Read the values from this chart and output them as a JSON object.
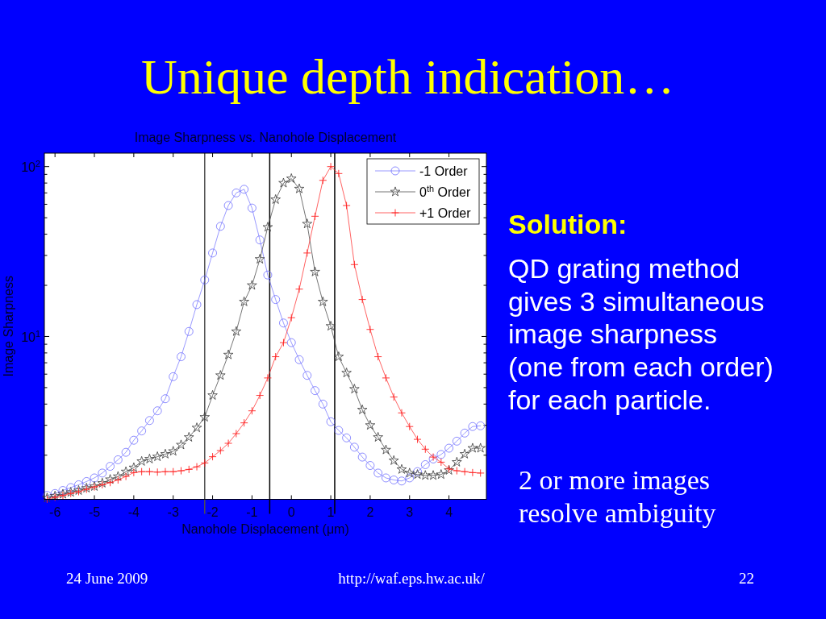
{
  "chart_data": {
    "type": "line",
    "title": "Unique depth indication…",
    "subtitle": "Image Sharpness vs. Nanohole Displacement",
    "xlabel": "Nanohole Displacement (μm)",
    "ylabel": "Image Sharpness",
    "x": [
      -6.2,
      -6,
      -5.8,
      -5.6,
      -5.4,
      -5.2,
      -5,
      -4.8,
      -4.6,
      -4.4,
      -4.2,
      -4,
      -3.8,
      -3.6,
      -3.4,
      -3.2,
      -3,
      -2.8,
      -2.6,
      -2.4,
      -2.2,
      -2,
      -1.8,
      -1.6,
      -1.4,
      -1.2,
      -1,
      -0.8,
      -0.6,
      -0.4,
      -0.2,
      0,
      0.2,
      0.4,
      0.6,
      0.8,
      1,
      1.2,
      1.4,
      1.6,
      1.8,
      2,
      2.2,
      2.4,
      2.6,
      2.8,
      3,
      3.2,
      3.4,
      3.6,
      3.8,
      4,
      4.2,
      4.4,
      4.6,
      4.8
    ],
    "series": [
      {
        "name": "-1 Order",
        "color": "#6f6fff",
        "marker": "circle",
        "values": [
          1.16,
          1.19,
          1.24,
          1.29,
          1.34,
          1.4,
          1.47,
          1.57,
          1.72,
          1.88,
          2.08,
          2.45,
          2.78,
          3.2,
          3.65,
          4.3,
          5.8,
          7.6,
          10.7,
          15.4,
          21.5,
          31,
          44.5,
          59,
          70,
          73.5,
          57,
          37,
          23,
          16.5,
          12,
          9.2,
          7.3,
          5.9,
          4.8,
          4,
          3.15,
          2.8,
          2.53,
          2.23,
          1.95,
          1.74,
          1.57,
          1.47,
          1.43,
          1.41,
          1.47,
          1.6,
          1.76,
          1.9,
          2.02,
          2.2,
          2.42,
          2.7,
          2.95,
          2.98
        ]
      },
      {
        "name": "0$^{th}$ Order",
        "color": "#3a3a3a",
        "marker": "star",
        "values": [
          1.12,
          1.15,
          1.18,
          1.21,
          1.24,
          1.28,
          1.31,
          1.37,
          1.44,
          1.5,
          1.6,
          1.69,
          1.84,
          1.9,
          1.96,
          2.03,
          2.11,
          2.3,
          2.55,
          2.9,
          3.35,
          4.5,
          5.9,
          7.8,
          10.7,
          16,
          20,
          28.5,
          44,
          64,
          80,
          85,
          74,
          46,
          24,
          16,
          11.5,
          7.6,
          6.1,
          4.9,
          3.7,
          3,
          2.55,
          2.15,
          1.86,
          1.65,
          1.57,
          1.54,
          1.52,
          1.52,
          1.54,
          1.63,
          1.82,
          2.03,
          2.2,
          2.2
        ]
      },
      {
        "name": "+1 Order",
        "color": "#ff2020",
        "marker": "cross",
        "values": [
          1.1,
          1.13,
          1.16,
          1.19,
          1.22,
          1.26,
          1.3,
          1.34,
          1.38,
          1.43,
          1.5,
          1.58,
          1.6,
          1.6,
          1.59,
          1.6,
          1.6,
          1.62,
          1.65,
          1.71,
          1.8,
          1.96,
          2.13,
          2.35,
          2.68,
          3.1,
          3.65,
          4.5,
          5.7,
          7.6,
          9.2,
          12.9,
          19,
          31,
          51,
          83,
          100,
          91,
          59,
          26.5,
          16.5,
          11,
          7.6,
          5.7,
          4.4,
          3.55,
          2.95,
          2.48,
          2.17,
          1.95,
          1.82,
          1.66,
          1.62,
          1.6,
          1.58,
          1.57
        ]
      }
    ],
    "xlim": [
      -6.27,
      4.95
    ],
    "xticks": [
      -6,
      -5,
      -4,
      -3,
      -2,
      -1,
      0,
      1,
      2,
      3,
      4
    ],
    "ylim": [
      1.1,
      120
    ],
    "yticks": [
      {
        "value": 2,
        "label": null
      },
      {
        "value": 3,
        "label": null
      },
      {
        "value": 4,
        "label": null
      },
      {
        "value": 5,
        "label": null
      },
      {
        "value": 6,
        "label": null
      },
      {
        "value": 7,
        "label": null
      },
      {
        "value": 8,
        "label": null
      },
      {
        "value": 9,
        "label": null
      },
      {
        "value": 10,
        "label": "10$^{1}$"
      },
      {
        "value": 20,
        "label": null
      },
      {
        "value": 30,
        "label": null
      },
      {
        "value": 40,
        "label": null
      },
      {
        "value": 50,
        "label": null
      },
      {
        "value": 60,
        "label": null
      },
      {
        "value": 70,
        "label": null
      },
      {
        "value": 80,
        "label": null
      },
      {
        "value": 90,
        "label": null
      },
      {
        "value": 100,
        "label": "10$^{2}$"
      }
    ],
    "log": true,
    "legend": "top right",
    "ref_lines": [
      {
        "axis": "x",
        "value": -2.2,
        "color": "#505050"
      },
      {
        "axis": "x",
        "value": -0.55,
        "color": "#000000"
      },
      {
        "axis": "x",
        "value": 1.1,
        "color": "#000000"
      }
    ],
    "annotations": [
      "Solution:",
      "QD grating method gives 3 simultaneous image sharpness (one from each order) for each particle.",
      "2 or more images resolve ambiguity",
      "24 June 2009",
      "http://waf.eps.hw.ac.uk/",
      "22"
    ]
  }
}
